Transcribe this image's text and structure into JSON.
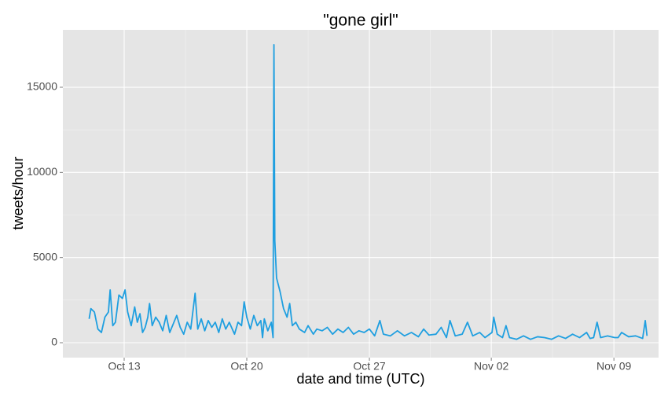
{
  "chart_data": {
    "type": "line",
    "title": "\"gone girl\"",
    "x_label": "date and time (UTC)",
    "y_label": "tweets/hour",
    "xlim": [
      9.5,
      43.51
    ],
    "ylim": [
      -877,
      18370
    ],
    "xticks": [
      {
        "value": 13,
        "label": "Oct 13"
      },
      {
        "value": 20,
        "label": "Oct 20"
      },
      {
        "value": 27,
        "label": "Oct 27"
      },
      {
        "value": 33.96,
        "label": "Nov 02"
      },
      {
        "value": 40.96,
        "label": "Nov 09"
      }
    ],
    "yticks": [
      0,
      5000,
      10000,
      15000
    ],
    "grid": true,
    "series": [
      {
        "name": "tweets",
        "color": "#1f9fe0",
        "x": [
          11.0,
          11.1,
          11.3,
          11.5,
          11.7,
          11.9,
          12.1,
          12.2,
          12.35,
          12.5,
          12.7,
          12.9,
          13.05,
          13.2,
          13.4,
          13.6,
          13.75,
          13.9,
          14.05,
          14.2,
          14.35,
          14.45,
          14.6,
          14.8,
          15.0,
          15.2,
          15.4,
          15.6,
          15.8,
          16.0,
          16.2,
          16.4,
          16.6,
          16.8,
          17.05,
          17.2,
          17.4,
          17.6,
          17.8,
          18.0,
          18.2,
          18.4,
          18.6,
          18.8,
          19.0,
          19.3,
          19.5,
          19.7,
          19.85,
          20.0,
          20.2,
          20.4,
          20.6,
          20.8,
          20.9,
          21.0,
          21.2,
          21.4,
          21.5,
          21.55,
          21.6,
          21.7,
          21.9,
          22.1,
          22.3,
          22.45,
          22.6,
          22.8,
          23.0,
          23.3,
          23.5,
          23.8,
          24.0,
          24.3,
          24.6,
          24.9,
          25.2,
          25.5,
          25.8,
          26.1,
          26.4,
          26.7,
          27.0,
          27.3,
          27.6,
          27.8,
          28.2,
          28.6,
          29.0,
          29.4,
          29.8,
          30.1,
          30.4,
          30.8,
          31.1,
          31.4,
          31.6,
          31.9,
          32.3,
          32.6,
          32.9,
          33.3,
          33.6,
          34.0,
          34.1,
          34.3,
          34.6,
          34.8,
          35.0,
          35.4,
          35.8,
          36.2,
          36.6,
          37.0,
          37.4,
          37.8,
          38.2,
          38.6,
          39.0,
          39.4,
          39.6,
          39.8,
          40.0,
          40.2,
          40.6,
          41.0,
          41.2,
          41.4,
          41.8,
          42.2,
          42.6,
          42.75,
          42.85
        ],
        "values": [
          1400,
          2000,
          1800,
          800,
          600,
          1500,
          1800,
          3100,
          1000,
          1200,
          2800,
          2600,
          3100,
          1800,
          1000,
          2100,
          1200,
          1700,
          600,
          900,
          1500,
          2300,
          1000,
          1500,
          1200,
          700,
          1600,
          600,
          1100,
          1600,
          900,
          500,
          1200,
          800,
          2900,
          800,
          1400,
          700,
          1300,
          900,
          1200,
          600,
          1400,
          800,
          1200,
          500,
          1200,
          1000,
          2400,
          1500,
          800,
          1600,
          1000,
          1300,
          300,
          1400,
          700,
          1200,
          300,
          17500,
          6000,
          3800,
          3000,
          2000,
          1500,
          2300,
          1000,
          1200,
          800,
          600,
          1000,
          500,
          800,
          700,
          900,
          500,
          800,
          600,
          900,
          500,
          700,
          600,
          800,
          400,
          1300,
          500,
          400,
          700,
          400,
          600,
          350,
          800,
          450,
          500,
          900,
          300,
          1300,
          400,
          500,
          1200,
          400,
          600,
          300,
          600,
          1500,
          500,
          300,
          1000,
          300,
          200,
          400,
          200,
          350,
          300,
          200,
          400,
          250,
          500,
          300,
          600,
          250,
          300,
          1200,
          300,
          400,
          300,
          300,
          600,
          350,
          400,
          250,
          1300,
          400
        ]
      }
    ]
  }
}
